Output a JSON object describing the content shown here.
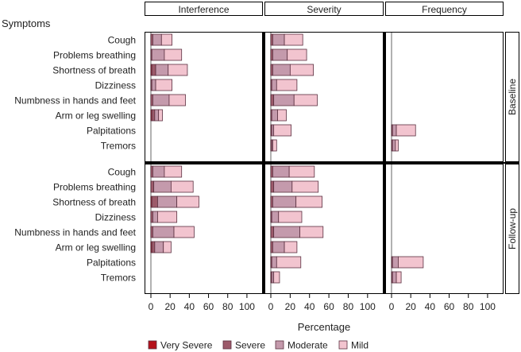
{
  "chart_data": {
    "type": "bar",
    "subtype": "stacked-horizontal-panel",
    "ylabel": "Symptoms",
    "xlabel": "Percentage",
    "xlim": [
      0,
      110
    ],
    "xticks": [
      0,
      20,
      40,
      60,
      80,
      100
    ],
    "columns": [
      "Interference",
      "Severity",
      "Frequency"
    ],
    "rows": [
      "Baseline",
      "Follow-up"
    ],
    "categories": [
      "Cough",
      "Problems breathing",
      "Shortness of breath",
      "Dizziness",
      "Numbness in hands and feet",
      "Arm or leg swelling",
      "Palpitations",
      "Tremors"
    ],
    "series": [
      {
        "name": "Very Severe",
        "color": "#b5121b"
      },
      {
        "name": "Severe",
        "color": "#9c5a6a"
      },
      {
        "name": "Moderate",
        "color": "#c49aac"
      },
      {
        "name": "Mild",
        "color": "#f2c4cf"
      }
    ],
    "panels": {
      "Baseline": {
        "Interference": [
          [
            0,
            2,
            9,
            11
          ],
          [
            0,
            1,
            13,
            18
          ],
          [
            1,
            4,
            13,
            20
          ],
          [
            0,
            1,
            4,
            17
          ],
          [
            0,
            2,
            17,
            17
          ],
          [
            1,
            3,
            4,
            4
          ],
          null,
          null
        ],
        "Severity": [
          [
            0,
            2,
            12,
            19
          ],
          [
            0,
            2,
            15,
            20
          ],
          [
            0,
            2,
            18,
            24
          ],
          [
            0,
            1,
            5,
            21
          ],
          [
            0,
            3,
            21,
            24
          ],
          [
            0,
            1,
            6,
            9
          ],
          [
            0,
            1,
            2,
            18
          ],
          [
            0,
            1,
            1,
            4
          ]
        ],
        "Frequency": [
          null,
          null,
          null,
          null,
          null,
          null,
          [
            0,
            1,
            4,
            20
          ],
          [
            0,
            1,
            3,
            3
          ]
        ]
      },
      "Follow-up": {
        "Interference": [
          [
            0,
            2,
            12,
            18
          ],
          [
            0,
            3,
            18,
            23
          ],
          [
            1,
            6,
            20,
            23
          ],
          [
            0,
            2,
            5,
            20
          ],
          [
            0,
            2,
            22,
            21
          ],
          [
            1,
            3,
            9,
            8
          ],
          null,
          null
        ],
        "Severity": [
          [
            0,
            2,
            17,
            26
          ],
          [
            0,
            3,
            19,
            27
          ],
          [
            0,
            2,
            24,
            27
          ],
          [
            0,
            1,
            7,
            24
          ],
          [
            0,
            3,
            27,
            24
          ],
          [
            0,
            2,
            12,
            13
          ],
          [
            0,
            1,
            5,
            25
          ],
          [
            0,
            1,
            2,
            6
          ]
        ],
        "Frequency": [
          null,
          null,
          null,
          null,
          null,
          null,
          [
            0,
            1,
            6,
            26
          ],
          [
            0,
            1,
            4,
            5
          ]
        ]
      }
    }
  }
}
